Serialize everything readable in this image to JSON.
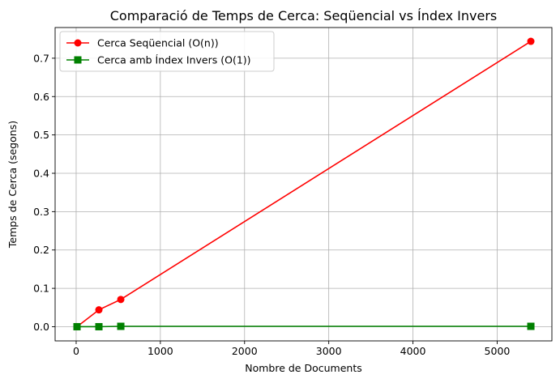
{
  "chart_data": {
    "type": "line",
    "title": "Comparació de Temps de Cerca: Seqüencial vs Índex Invers",
    "xlabel": "Nombre de Documents",
    "ylabel": "Temps de Cerca (segons)",
    "xlim": [
      -250,
      5650
    ],
    "ylim": [
      -0.037,
      0.78
    ],
    "xticks": [
      0,
      1000,
      2000,
      3000,
      4000,
      5000
    ],
    "yticks": [
      0.0,
      0.1,
      0.2,
      0.3,
      0.4,
      0.5,
      0.6,
      0.7
    ],
    "xtick_labels": [
      "0",
      "1000",
      "2000",
      "3000",
      "4000",
      "5000"
    ],
    "ytick_labels": [
      "0.0",
      "0.1",
      "0.2",
      "0.3",
      "0.4",
      "0.5",
      "0.6",
      "0.7"
    ],
    "grid": true,
    "legend_position": "upper-left",
    "series": [
      {
        "name": "Cerca Seqüencial (O(n))",
        "color": "#ff0000",
        "marker": "circle",
        "x": [
          10,
          270,
          530,
          5400
        ],
        "y": [
          0.0,
          0.044,
          0.071,
          0.744
        ]
      },
      {
        "name": "Cerca amb Índex Invers (O(1))",
        "color": "#008000",
        "marker": "square",
        "x": [
          10,
          270,
          530,
          5400
        ],
        "y": [
          0.0,
          0.0,
          0.001,
          0.001
        ]
      }
    ]
  }
}
